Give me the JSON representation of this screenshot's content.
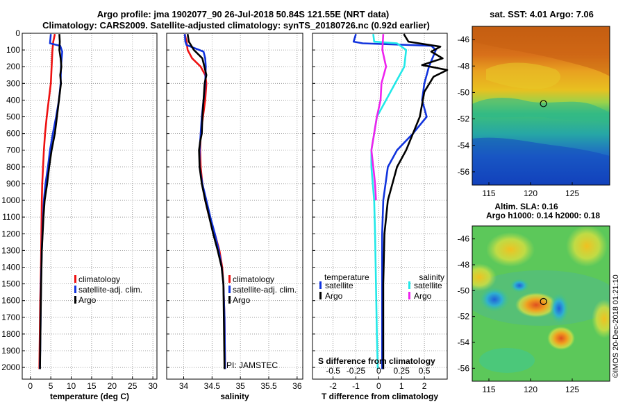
{
  "header": {
    "line1": "Argo profile: jma 1902077_90 26-Jul-2018 50.84S 121.55E (NRT data)",
    "line2": "Climatology: CARS2009. Satellite-adjusted climatology: synTS_20180726.nc (0.92d earlier)"
  },
  "colors": {
    "climatology": "#ee1111",
    "satellite": "#1133dd",
    "argo": "#000000",
    "satellite_s": "#22e8e8",
    "argo_s": "#ee22ee",
    "grid": "#888888"
  },
  "chart_data": [
    {
      "id": "temperature",
      "type": "line",
      "xlabel": "temperature (deg C)",
      "ylabel": "",
      "xlim": [
        -2,
        31
      ],
      "ylim": [
        2070,
        0
      ],
      "xticks": [
        0,
        5,
        10,
        15,
        20,
        25,
        30
      ],
      "xtick_labels": [
        "0",
        "5",
        "10",
        "15",
        "20",
        "25",
        "30"
      ],
      "yticks": [
        0,
        100,
        200,
        300,
        400,
        500,
        600,
        700,
        800,
        900,
        1000,
        1100,
        1200,
        1300,
        1400,
        1500,
        1600,
        1700,
        1800,
        1900,
        2000
      ],
      "ytick_labels": [
        "0",
        "100",
        "200",
        "300",
        "400",
        "500",
        "600",
        "700",
        "800",
        "900",
        "1000",
        "1100",
        "1200",
        "1300",
        "1400",
        "1500",
        "1600",
        "1700",
        "1800",
        "1900",
        "2000"
      ],
      "grid": true,
      "legend": {
        "position": "lower-right",
        "entries": [
          {
            "label": "climatology",
            "series": "climatology"
          },
          {
            "label": "satellite-adj. clim.",
            "series": "satellite"
          },
          {
            "label": "Argo",
            "series": "argo"
          }
        ]
      },
      "series": [
        {
          "name": "climatology",
          "color_key": "climatology",
          "x": [
            6.0,
            5.6,
            5.4,
            5.0,
            4.5,
            4.0,
            3.6,
            3.3,
            3.1,
            2.9,
            2.8,
            2.7,
            2.6,
            2.5,
            2.4,
            2.3,
            2.25,
            2.2
          ],
          "y": [
            5,
            50,
            100,
            300,
            400,
            500,
            600,
            700,
            800,
            900,
            1000,
            1200,
            1400,
            1500,
            1600,
            1800,
            1900,
            2010
          ]
        },
        {
          "name": "satellite",
          "color_key": "satellite",
          "x": [
            5.0,
            4.8,
            7.3,
            7.8,
            7.5,
            7.4,
            7.0,
            6.3,
            5.5,
            4.8,
            4.3,
            3.7,
            3.3,
            3.1,
            2.8,
            2.6,
            2.5,
            2.4,
            2.3
          ],
          "y": [
            5,
            60,
            75,
            110,
            200,
            300,
            400,
            500,
            600,
            700,
            800,
            900,
            1000,
            1100,
            1300,
            1500,
            1700,
            1900,
            2010
          ]
        },
        {
          "name": "Argo",
          "color_key": "argo",
          "x": [
            7.1,
            7.2,
            7.1,
            7.4,
            7.6,
            7.3,
            7.5,
            7.0,
            6.5,
            6.0,
            5.2,
            4.6,
            4.1,
            3.5,
            3.2,
            3.0,
            2.8,
            2.65,
            2.5,
            2.4,
            2.35
          ],
          "y": [
            5,
            50,
            100,
            150,
            200,
            250,
            300,
            400,
            500,
            600,
            700,
            800,
            900,
            1000,
            1100,
            1200,
            1300,
            1500,
            1700,
            1900,
            2010
          ]
        }
      ]
    },
    {
      "id": "salinity",
      "type": "line",
      "xlabel": "salinity",
      "ylabel": "",
      "xlim": [
        33.7,
        36.1
      ],
      "ylim": [
        2070,
        0
      ],
      "xticks": [
        34,
        34.5,
        35,
        35.5,
        36
      ],
      "xtick_labels": [
        "34",
        "34.5",
        "35",
        "35.5",
        "36"
      ],
      "grid": true,
      "legend": {
        "position": "lower-right",
        "entries": [
          {
            "label": "climatology",
            "series": "climatology"
          },
          {
            "label": "satellite-adj. clim.",
            "series": "satellite"
          },
          {
            "label": "Argo",
            "series": "argo"
          }
        ]
      },
      "annotation": "PI: JAMSTEC",
      "series": [
        {
          "name": "climatology",
          "color_key": "climatology",
          "x": [
            34.02,
            34.05,
            34.07,
            34.15,
            34.3,
            34.38,
            34.4,
            34.38,
            34.34,
            34.3,
            34.29,
            34.3,
            34.33,
            34.38,
            34.45,
            34.55,
            34.63,
            34.68,
            34.7,
            34.72,
            34.73
          ],
          "y": [
            5,
            50,
            100,
            150,
            200,
            250,
            300,
            400,
            500,
            600,
            700,
            800,
            900,
            1000,
            1100,
            1200,
            1300,
            1400,
            1500,
            1700,
            2010
          ]
        },
        {
          "name": "satellite",
          "color_key": "satellite",
          "x": [
            34.02,
            34.03,
            34.05,
            34.35,
            34.38,
            34.39,
            34.38,
            34.35,
            34.32,
            34.3,
            34.28,
            34.28,
            34.33,
            34.4,
            34.47,
            34.55,
            34.62,
            34.67,
            34.7,
            34.72,
            34.73
          ],
          "y": [
            5,
            50,
            70,
            110,
            150,
            200,
            300,
            400,
            500,
            600,
            700,
            800,
            900,
            1000,
            1100,
            1200,
            1300,
            1400,
            1500,
            1700,
            2010
          ]
        },
        {
          "name": "Argo",
          "color_key": "argo",
          "x": [
            34.07,
            34.09,
            34.18,
            34.33,
            34.4,
            34.37,
            34.35,
            34.33,
            34.32,
            34.29,
            34.27,
            34.28,
            34.32,
            34.38,
            34.45,
            34.52,
            34.6,
            34.67,
            34.7,
            34.72
          ],
          "y": [
            5,
            50,
            100,
            150,
            250,
            300,
            400,
            500,
            600,
            650,
            700,
            800,
            900,
            1000,
            1100,
            1200,
            1300,
            1400,
            1500,
            2010
          ]
        }
      ]
    },
    {
      "id": "difference",
      "type": "line",
      "xlabel": "T difference from climatology",
      "xlabel_top": "S difference from climatology",
      "ylabel": "",
      "xlim": [
        -2.9,
        3.0
      ],
      "ylim": [
        2070,
        0
      ],
      "xticks": [
        -2,
        -1,
        0,
        1,
        2
      ],
      "xtick_labels": [
        "-2",
        "-1",
        "0",
        "1",
        "2"
      ],
      "xticks_s": [
        -0.5,
        -0.25,
        0,
        0.25,
        0.5
      ],
      "xtick_labels_s": [
        "-0.5",
        "-0.25",
        "0",
        "0.25",
        "0.5"
      ],
      "grid": true,
      "legend": {
        "position": "lower",
        "temperature_title": "temperature",
        "salinity_title": "salinity",
        "entries_t": [
          {
            "label": "satellite",
            "series": "satellite_t"
          },
          {
            "label": "Argo",
            "series": "argo_t"
          }
        ],
        "entries_s": [
          {
            "label": "satellite",
            "series": "satellite_s"
          },
          {
            "label": "Argo",
            "series": "argo_s"
          }
        ]
      },
      "series": [
        {
          "name": "satellite_t",
          "color_key": "satellite",
          "x": [
            -1.0,
            -1.1,
            -0.7,
            2.3,
            2.5,
            2.2,
            2.0,
            1.9,
            2.1,
            1.5,
            0.8,
            0.4,
            0.2,
            0.15,
            0.15,
            0.15,
            0.15,
            0.15
          ],
          "y": [
            5,
            50,
            60,
            75,
            100,
            200,
            300,
            400,
            500,
            600,
            700,
            800,
            1000,
            1200,
            1400,
            1600,
            1800,
            2010
          ]
        },
        {
          "name": "argo_t",
          "color_key": "argo",
          "x": [
            1.1,
            1.3,
            2.7,
            2.3,
            2.8,
            1.9,
            3.0,
            2.4,
            2.0,
            1.8,
            1.5,
            1.2,
            0.8,
            0.4,
            0.25,
            0.2,
            0.2,
            0.2
          ],
          "y": [
            5,
            50,
            80,
            110,
            150,
            190,
            220,
            260,
            350,
            500,
            600,
            700,
            800,
            1000,
            1200,
            1500,
            1800,
            2010
          ]
        },
        {
          "name": "satellite_s",
          "color_key": "satellite_s",
          "x": [
            -0.06,
            -0.05,
            0.2,
            0.3,
            0.28,
            0.18,
            0.08,
            -0.02,
            -0.05,
            -0.08,
            -0.08,
            -0.05,
            -0.04,
            -0.03,
            -0.02,
            -0.01
          ],
          "y": [
            5,
            50,
            60,
            100,
            200,
            300,
            400,
            500,
            600,
            700,
            800,
            1000,
            1200,
            1500,
            1800,
            2010
          ]
        },
        {
          "name": "argo_s",
          "color_key": "argo_s",
          "x": [
            0.05,
            0.04,
            0.08,
            0.03,
            0.02,
            -0.02,
            -0.05,
            -0.08,
            -0.06,
            -0.04,
            -0.03
          ],
          "y": [
            5,
            100,
            200,
            300,
            400,
            500,
            600,
            700,
            800,
            900,
            1000
          ]
        }
      ]
    }
  ],
  "maps": {
    "sst": {
      "title": "sat. SST: 4.01 Argo: 7.06",
      "yticks": [
        -46,
        -48,
        -50,
        -52,
        -54,
        -56
      ],
      "xticks": [
        115,
        120,
        125
      ],
      "ytick_labels": [
        "-46",
        "-48",
        "-50",
        "-52",
        "-54",
        "-56"
      ],
      "xtick_labels": [
        "115",
        "120",
        "125"
      ],
      "lon_range": [
        113,
        129.5
      ],
      "lat_range": [
        -57,
        -45
      ],
      "argo_position": {
        "lon": 121.55,
        "lat": -50.84
      }
    },
    "sla": {
      "title1": "Altim. SLA: 0.16",
      "title2": "Argo h1000: 0.14 h2000: 0.18",
      "yticks": [
        -46,
        -48,
        -50,
        -52,
        -54,
        -56
      ],
      "xticks": [
        115,
        120,
        125
      ],
      "ytick_labels": [
        "-46",
        "-48",
        "-50",
        "-52",
        "-54",
        "-56"
      ],
      "xtick_labels": [
        "115",
        "120",
        "125"
      ],
      "lon_range": [
        113,
        129.5
      ],
      "lat_range": [
        -57,
        -45
      ],
      "argo_position": {
        "lon": 121.55,
        "lat": -50.84
      }
    }
  },
  "credit": "©IMOS 20-Dec-2018 01:21:10"
}
